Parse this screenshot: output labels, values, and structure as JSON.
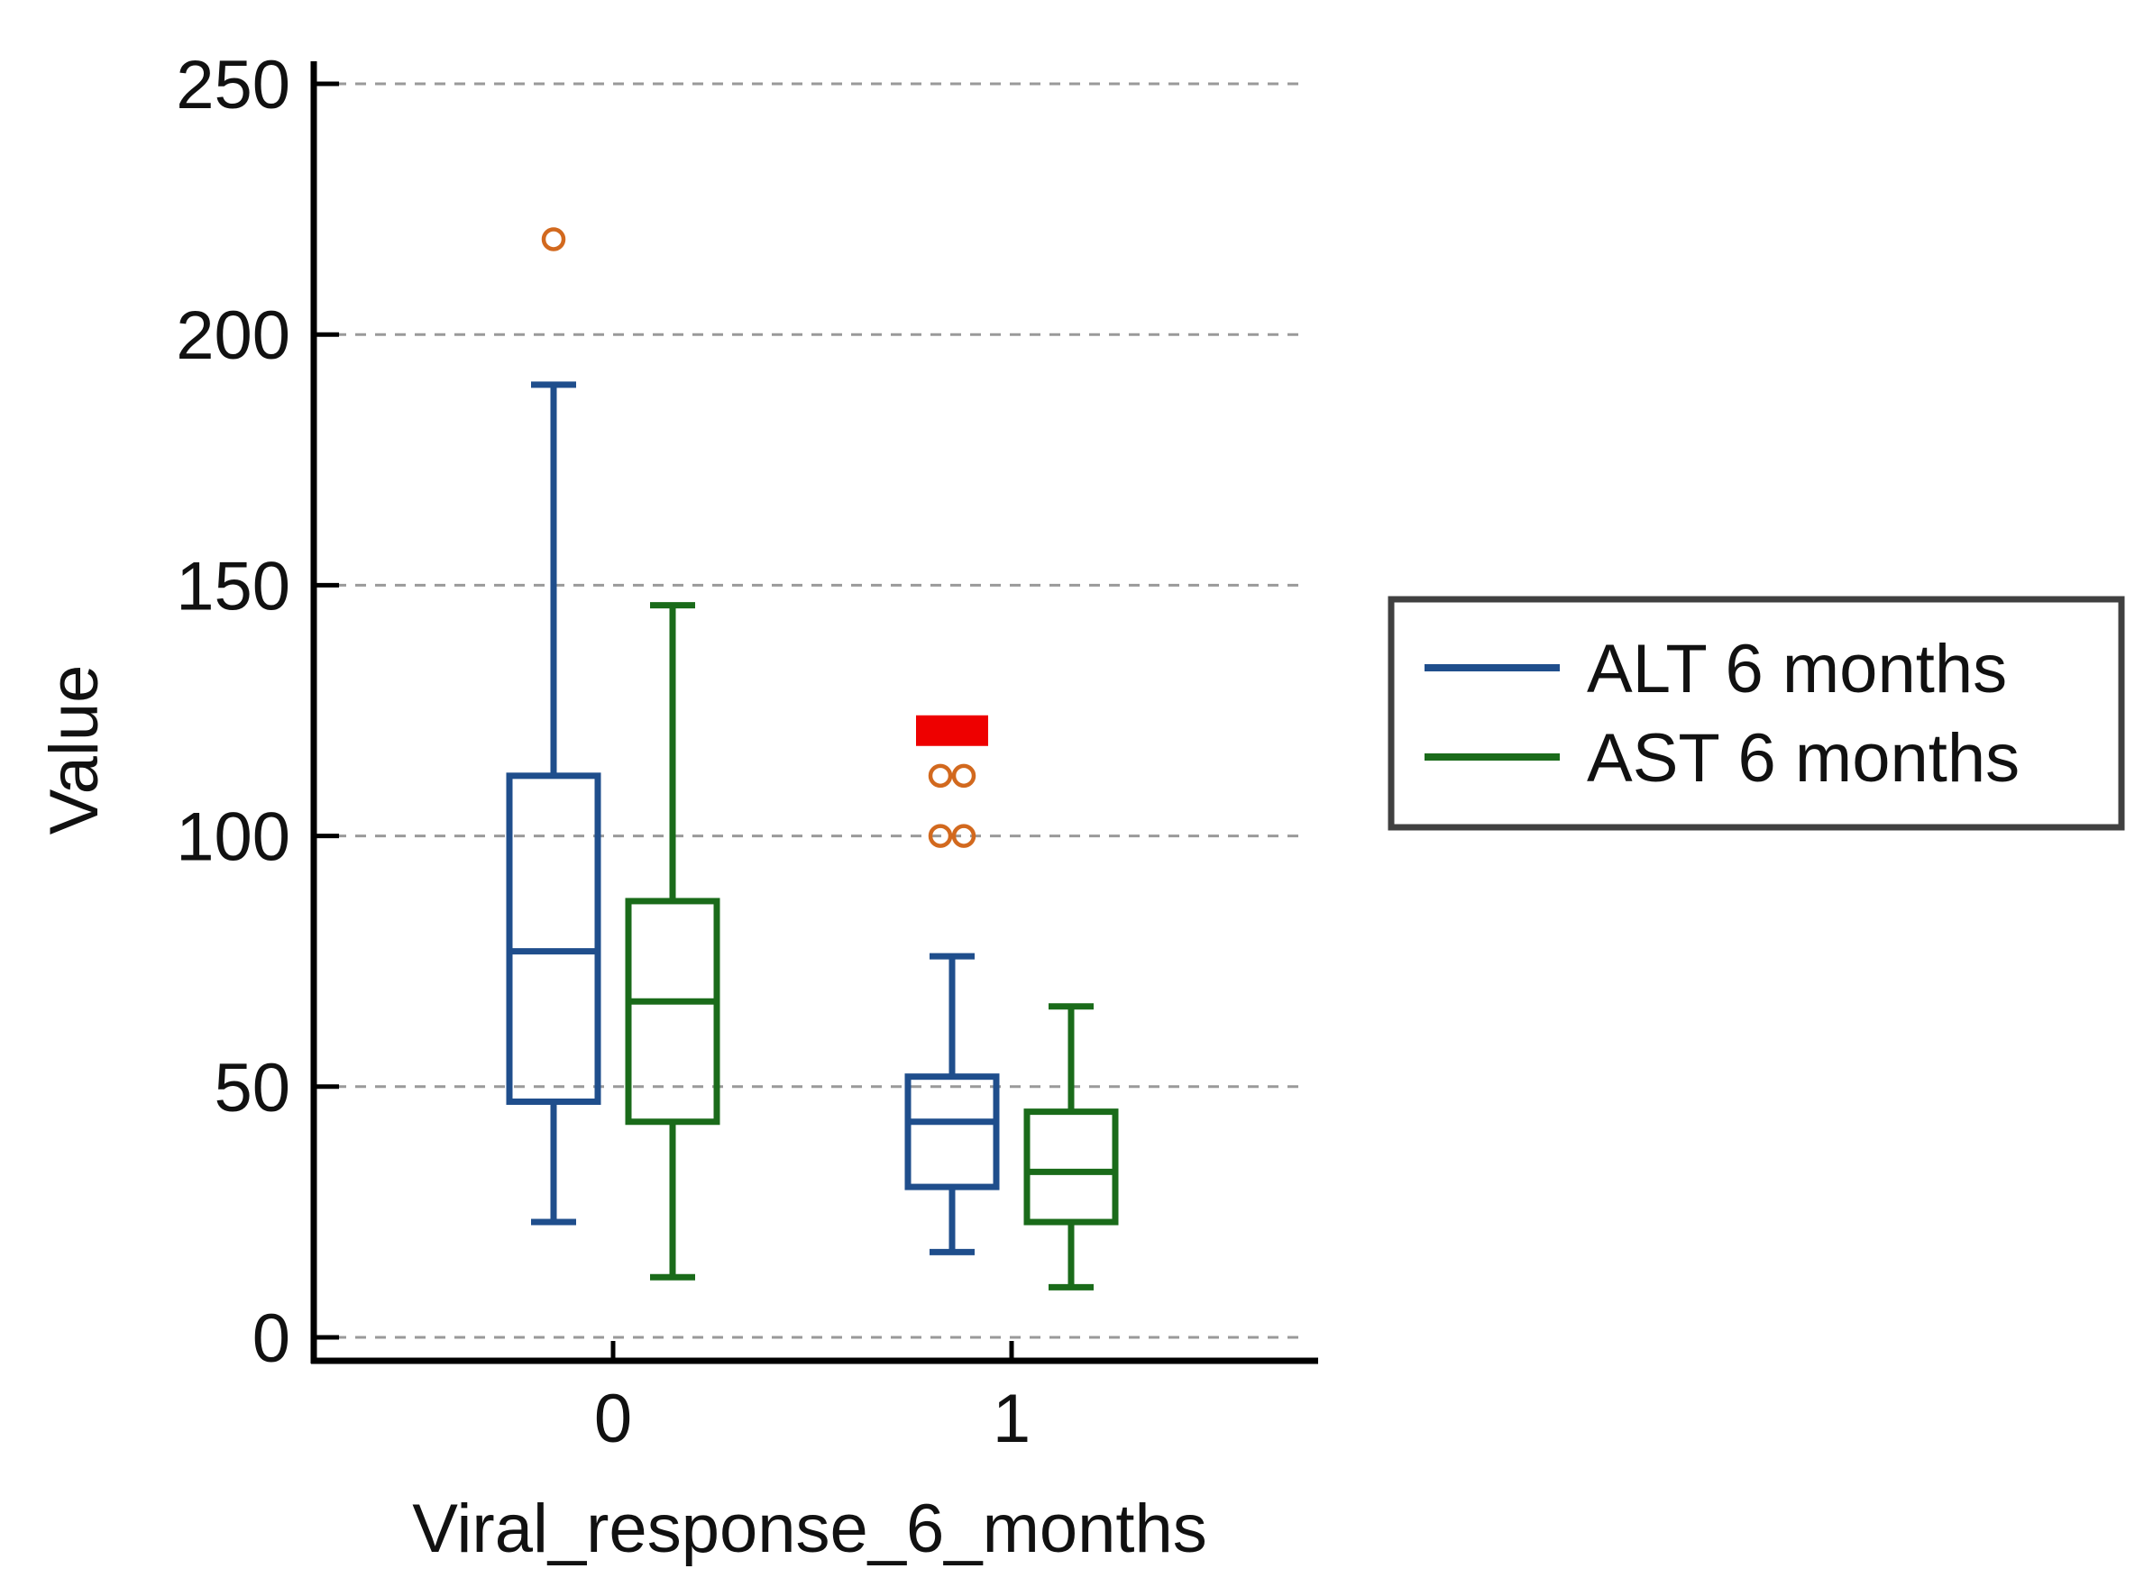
{
  "chart_data": {
    "type": "boxplot",
    "xlabel": "Viral_response_6_months",
    "ylabel": "Value",
    "ylim": [
      0,
      250
    ],
    "yticks": [
      0,
      50,
      100,
      150,
      200,
      250
    ],
    "categories": [
      "0",
      "1"
    ],
    "grid": "horizontal-dashed",
    "legend_position": "right",
    "series": [
      {
        "name": "ALT 6 months",
        "color": "#1f4e8c",
        "boxes": [
          {
            "category": "0",
            "whisker_low": 23,
            "q1": 47,
            "median": 77,
            "q3": 112,
            "whisker_high": 190,
            "outliers": [
              219
            ]
          },
          {
            "category": "1",
            "whisker_low": 17,
            "q1": 30,
            "median": 43,
            "q3": 52,
            "whisker_high": 76,
            "outliers": [
              100,
              100,
              112,
              112
            ]
          }
        ]
      },
      {
        "name": "AST 6 months",
        "color": "#1a6b1a",
        "boxes": [
          {
            "category": "0",
            "whisker_low": 12,
            "q1": 43,
            "median": 67,
            "q3": 87,
            "whisker_high": 146,
            "outliers": []
          },
          {
            "category": "1",
            "whisker_low": 10,
            "q1": 23,
            "median": 33,
            "q3": 45,
            "whisker_high": 66,
            "outliers": []
          }
        ]
      }
    ],
    "outlier_color": "#d2691e",
    "extreme_marker": {
      "category": "1",
      "value": 121,
      "color": "#ee0000"
    }
  }
}
